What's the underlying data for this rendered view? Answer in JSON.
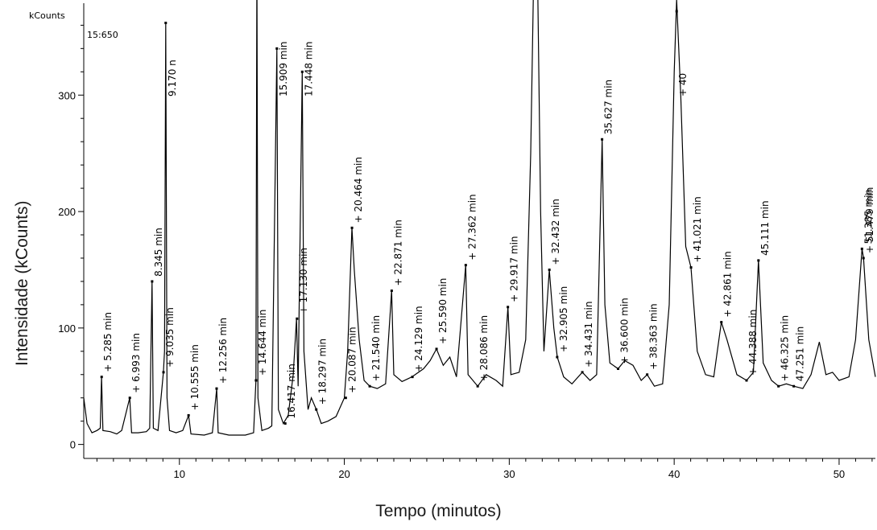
{
  "chart_data": {
    "type": "line",
    "xlabel": "Tempo (minutos)",
    "ylabel": "Intensidade (kCounts)",
    "y_unit_label": "kCounts",
    "scan_label": "15:650",
    "xlim": [
      4.2,
      52.2
    ],
    "ylim": [
      -12,
      372
    ],
    "x_ticks": [
      10,
      20,
      30,
      40,
      50
    ],
    "x_tick_labels": [
      "10",
      "20",
      "30",
      "40",
      "50"
    ],
    "y_ticks": [
      0,
      100,
      200,
      300
    ],
    "y_tick_labels": [
      "0",
      "100",
      "200",
      "300"
    ],
    "grid": false,
    "series": [
      {
        "line_color": "#000000",
        "points": [
          [
            4.2,
            40
          ],
          [
            4.4,
            18
          ],
          [
            4.7,
            10
          ],
          [
            5.0,
            12
          ],
          [
            5.2,
            14
          ],
          [
            5.28,
            58
          ],
          [
            5.36,
            12
          ],
          [
            5.8,
            11
          ],
          [
            6.2,
            9
          ],
          [
            6.5,
            12
          ],
          [
            6.99,
            40
          ],
          [
            7.1,
            10
          ],
          [
            7.5,
            10
          ],
          [
            8.0,
            11
          ],
          [
            8.2,
            14
          ],
          [
            8.34,
            140
          ],
          [
            8.42,
            14
          ],
          [
            8.7,
            12
          ],
          [
            9.03,
            62
          ],
          [
            9.1,
            80
          ],
          [
            9.17,
            362
          ],
          [
            9.25,
            40
          ],
          [
            9.4,
            12
          ],
          [
            9.8,
            10
          ],
          [
            10.2,
            12
          ],
          [
            10.56,
            25
          ],
          [
            10.7,
            9
          ],
          [
            11.5,
            8
          ],
          [
            12.0,
            10
          ],
          [
            12.26,
            48
          ],
          [
            12.35,
            10
          ],
          [
            13.0,
            8
          ],
          [
            14.0,
            8
          ],
          [
            14.5,
            10
          ],
          [
            14.64,
            55
          ],
          [
            14.7,
            420
          ],
          [
            14.76,
            40
          ],
          [
            15.0,
            12
          ],
          [
            15.4,
            14
          ],
          [
            15.6,
            16
          ],
          [
            15.91,
            340
          ],
          [
            16.0,
            30
          ],
          [
            16.3,
            18
          ],
          [
            16.6,
            25
          ],
          [
            16.9,
            60
          ],
          [
            17.1,
            108
          ],
          [
            17.2,
            50
          ],
          [
            17.45,
            320
          ],
          [
            17.55,
            80
          ],
          [
            17.8,
            30
          ],
          [
            18.0,
            40
          ],
          [
            18.3,
            30
          ],
          [
            18.6,
            18
          ],
          [
            19.0,
            20
          ],
          [
            19.5,
            24
          ],
          [
            20.0,
            40
          ],
          [
            20.2,
            80
          ],
          [
            20.46,
            186
          ],
          [
            20.6,
            150
          ],
          [
            20.9,
            90
          ],
          [
            21.2,
            55
          ],
          [
            21.54,
            50
          ],
          [
            22.0,
            48
          ],
          [
            22.5,
            52
          ],
          [
            22.87,
            132
          ],
          [
            23.0,
            60
          ],
          [
            23.5,
            54
          ],
          [
            24.1,
            58
          ],
          [
            24.8,
            65
          ],
          [
            25.2,
            72
          ],
          [
            25.59,
            82
          ],
          [
            26.0,
            68
          ],
          [
            26.4,
            75
          ],
          [
            26.8,
            58
          ],
          [
            27.36,
            154
          ],
          [
            27.5,
            60
          ],
          [
            28.09,
            50
          ],
          [
            28.6,
            60
          ],
          [
            29.2,
            55
          ],
          [
            29.6,
            50
          ],
          [
            29.92,
            118
          ],
          [
            30.1,
            60
          ],
          [
            30.6,
            62
          ],
          [
            31.0,
            90
          ],
          [
            31.3,
            250
          ],
          [
            31.5,
            420
          ],
          [
            31.7,
            420
          ],
          [
            31.9,
            200
          ],
          [
            32.1,
            80
          ],
          [
            32.43,
            150
          ],
          [
            32.7,
            100
          ],
          [
            32.91,
            75
          ],
          [
            33.3,
            58
          ],
          [
            33.8,
            52
          ],
          [
            34.43,
            62
          ],
          [
            34.9,
            55
          ],
          [
            35.3,
            60
          ],
          [
            35.63,
            262
          ],
          [
            35.8,
            120
          ],
          [
            36.1,
            70
          ],
          [
            36.6,
            65
          ],
          [
            37.0,
            72
          ],
          [
            37.5,
            68
          ],
          [
            38.0,
            55
          ],
          [
            38.36,
            60
          ],
          [
            38.8,
            50
          ],
          [
            39.3,
            52
          ],
          [
            39.7,
            120
          ],
          [
            40.0,
            320
          ],
          [
            40.15,
            382
          ],
          [
            40.4,
            300
          ],
          [
            40.7,
            170
          ],
          [
            41.02,
            152
          ],
          [
            41.4,
            80
          ],
          [
            41.9,
            60
          ],
          [
            42.4,
            58
          ],
          [
            42.86,
            105
          ],
          [
            43.2,
            90
          ],
          [
            43.8,
            60
          ],
          [
            44.39,
            55
          ],
          [
            44.8,
            62
          ],
          [
            45.11,
            158
          ],
          [
            45.4,
            70
          ],
          [
            45.9,
            55
          ],
          [
            46.33,
            50
          ],
          [
            46.8,
            52
          ],
          [
            47.25,
            50
          ],
          [
            47.8,
            48
          ],
          [
            48.3,
            60
          ],
          [
            48.8,
            88
          ],
          [
            49.2,
            60
          ],
          [
            49.6,
            62
          ],
          [
            50.0,
            55
          ],
          [
            50.6,
            58
          ],
          [
            51.0,
            90
          ],
          [
            51.39,
            168
          ],
          [
            51.48,
            160
          ],
          [
            51.8,
            90
          ],
          [
            52.2,
            58
          ]
        ]
      }
    ],
    "peak_labels": [
      {
        "x": 5.285,
        "text": "+ 5.285 min"
      },
      {
        "x": 6.993,
        "text": "+ 6.993 min"
      },
      {
        "x": 8.345,
        "text": "8.345 min"
      },
      {
        "x": 9.035,
        "text": "+ 9.035 min"
      },
      {
        "x": 9.17,
        "text": "9.170 n"
      },
      {
        "x": 10.555,
        "text": "+ 10.555 min"
      },
      {
        "x": 12.256,
        "text": "+ 12.256 min"
      },
      {
        "x": 14.644,
        "text": "+ 14.644 min"
      },
      {
        "x": 15.909,
        "text": "15.909 min"
      },
      {
        "x": 16.417,
        "text": "16.417 min"
      },
      {
        "x": 17.13,
        "text": "+ 17.130 min"
      },
      {
        "x": 17.448,
        "text": "17.448 min"
      },
      {
        "x": 18.297,
        "text": "+ 18.297 min"
      },
      {
        "x": 20.087,
        "text": "+ 20.087 min"
      },
      {
        "x": 20.464,
        "text": "+ 20.464 min"
      },
      {
        "x": 21.54,
        "text": "+ 21.540 min"
      },
      {
        "x": 22.871,
        "text": "+ 22.871 min"
      },
      {
        "x": 24.129,
        "text": "+ 24.129 min"
      },
      {
        "x": 25.59,
        "text": "+ 25.590 min"
      },
      {
        "x": 27.362,
        "text": "+ 27.362 min"
      },
      {
        "x": 28.086,
        "text": "+ 28.086 min"
      },
      {
        "x": 29.917,
        "text": "+ 29.917 min"
      },
      {
        "x": 32.432,
        "text": "+ 32.432 min"
      },
      {
        "x": 32.905,
        "text": "+ 32.905 min"
      },
      {
        "x": 34.431,
        "text": "+ 34.431 min"
      },
      {
        "x": 35.627,
        "text": "35.627 min"
      },
      {
        "x": 36.6,
        "text": "+ 36.600 min"
      },
      {
        "x": 38.363,
        "text": "+ 38.363 min"
      },
      {
        "x": 40.15,
        "text": "+ 40"
      },
      {
        "x": 41.021,
        "text": "+ 41.021 min"
      },
      {
        "x": 42.861,
        "text": "+ 42.861 min"
      },
      {
        "x": 44.388,
        "text": "+ 44.388 min"
      },
      {
        "x": 45.111,
        "text": "45.111 min"
      },
      {
        "x": 46.325,
        "text": "+ 46.325 min"
      },
      {
        "x": 47.251,
        "text": "47.251 min"
      },
      {
        "x": 51.385,
        "text": "51.385 min"
      },
      {
        "x": 51.479,
        "text": "+ 51.479 min"
      }
    ]
  }
}
